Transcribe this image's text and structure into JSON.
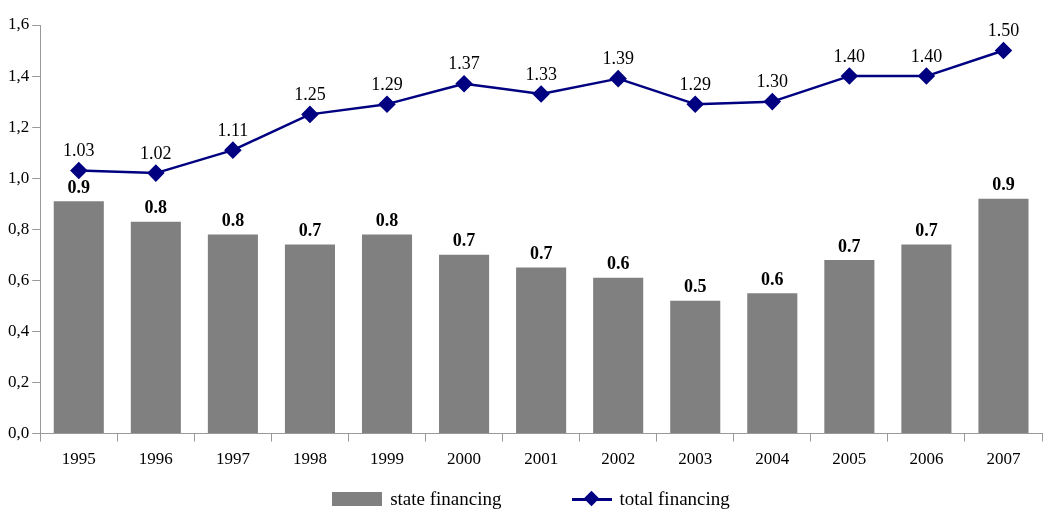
{
  "chart_data": {
    "type": "bar",
    "categories": [
      "1995",
      "1996",
      "1997",
      "1998",
      "1999",
      "2000",
      "2001",
      "2002",
      "2003",
      "2004",
      "2005",
      "2006",
      "2007"
    ],
    "series": [
      {
        "name": "state financing",
        "color": "#808080",
        "values": [
          0.91,
          0.83,
          0.78,
          0.74,
          0.78,
          0.7,
          0.65,
          0.61,
          0.52,
          0.55,
          0.68,
          0.74,
          0.92
        ],
        "value_labels": [
          "0.9",
          "0.8",
          "0.8",
          "0.7",
          "0.8",
          "0.7",
          "0.7",
          "0.6",
          "0.5",
          "0.6",
          "0.7",
          "0.7",
          "0.9"
        ]
      },
      {
        "name": "total financing",
        "type": "line",
        "color": "#000080",
        "marker": "diamond",
        "values": [
          1.03,
          1.02,
          1.11,
          1.25,
          1.29,
          1.37,
          1.33,
          1.39,
          1.29,
          1.3,
          1.4,
          1.4,
          1.5
        ],
        "value_labels": [
          "1.03",
          "1.02",
          "1.11",
          "1.25",
          "1.29",
          "1.37",
          "1.33",
          "1.39",
          "1.29",
          "1.30",
          "1.40",
          "1.40",
          "1.50"
        ]
      }
    ],
    "ylim": [
      0,
      1.6
    ],
    "yticks": [
      {
        "value": 0,
        "label": "0,0"
      },
      {
        "value": 0.2,
        "label": "0,2"
      },
      {
        "value": 0.4,
        "label": "0,4"
      },
      {
        "value": 0.6,
        "label": "0,6"
      },
      {
        "value": 0.8,
        "label": "0,8"
      },
      {
        "value": 1,
        "label": "1,0"
      },
      {
        "value": 1.2,
        "label": "1,2"
      },
      {
        "value": 1.4,
        "label": "1,4"
      },
      {
        "value": 1.6,
        "label": "1,6"
      }
    ],
    "legend": "bottom"
  }
}
